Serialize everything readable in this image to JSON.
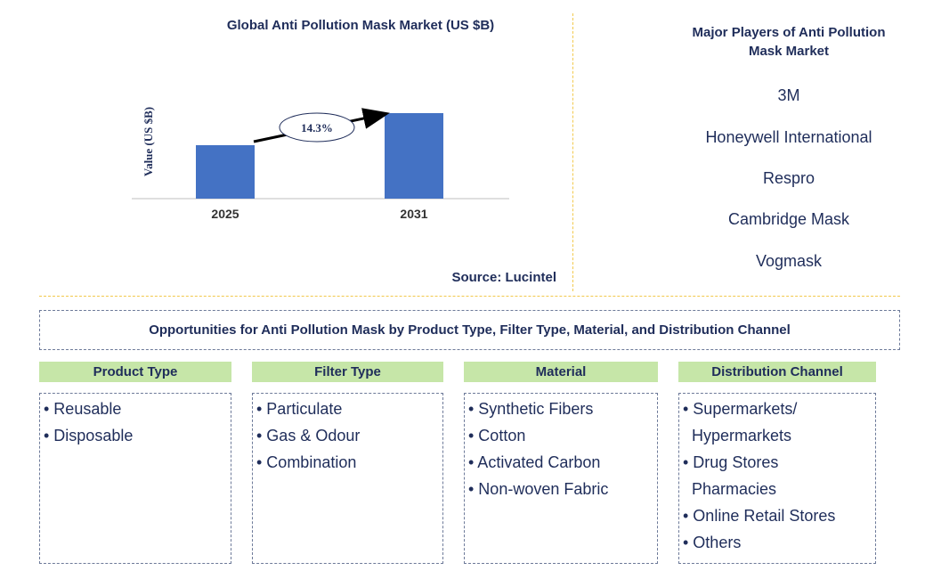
{
  "chart_title": "Global Anti Pollution Mask Market (US $B)",
  "source": "Source: Lucintel",
  "chart_data": {
    "type": "bar",
    "categories": [
      "2025",
      "2031"
    ],
    "values": [
      1.0,
      1.6
    ],
    "title": "Global Anti Pollution Mask Market (US $B)",
    "xlabel": "",
    "ylabel": "Value (US $B)",
    "annotation": "14.3%",
    "bar_color": "#4472c4"
  },
  "players": {
    "title": "Major Players of Anti Pollution Mask Market",
    "names": [
      "3M",
      "Honeywell International",
      "Respro",
      "Cambridge Mask",
      "Vogmask"
    ]
  },
  "opportunities_title": "Opportunities for Anti Pollution Mask by Product Type, Filter Type, Material, and Distribution Channel",
  "categories": [
    {
      "title": "Product Type",
      "items": [
        "• Reusable",
        "• Disposable"
      ]
    },
    {
      "title": "Filter Type",
      "items": [
        "• Particulate",
        "• Gas & Odour",
        "• Combination"
      ]
    },
    {
      "title": "Material",
      "items": [
        "• Synthetic Fibers",
        "• Cotton",
        "• Activated Carbon",
        "• Non-woven Fabric"
      ]
    },
    {
      "title": "Distribution Channel",
      "items": [
        "• Supermarkets/",
        "  Hypermarkets",
        "• Drug Stores",
        "  Pharmacies",
        "• Online Retail Stores",
        "• Others"
      ]
    }
  ]
}
